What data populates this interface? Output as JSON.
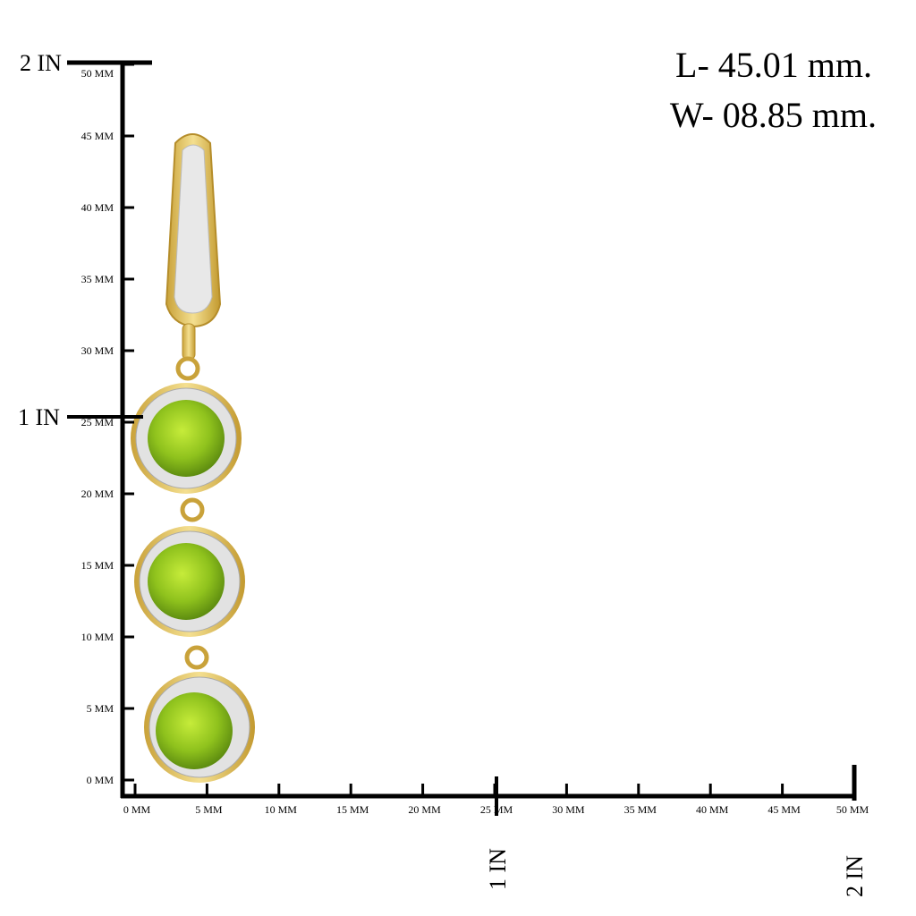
{
  "dimensions": {
    "length": "L- 45.01 mm.",
    "width": "W- 08.85 mm."
  },
  "ruler": {
    "vertical_mm": [
      "0 MM",
      "5 MM",
      "10 MM",
      "15 MM",
      "20 MM",
      "25 MM",
      "30 MM",
      "35 MM",
      "40 MM",
      "45 MM",
      "50 MM"
    ],
    "horizontal_mm": [
      "0 MM",
      "5 MM",
      "10 MM",
      "15 MM",
      "20 MM",
      "25 MM",
      "30 MM",
      "35 MM",
      "40 MM",
      "45 MM",
      "50 MM"
    ],
    "vertical_in": [
      "1 IN",
      "2 IN"
    ],
    "horizontal_in": [
      "1 IN",
      "2 IN"
    ]
  }
}
